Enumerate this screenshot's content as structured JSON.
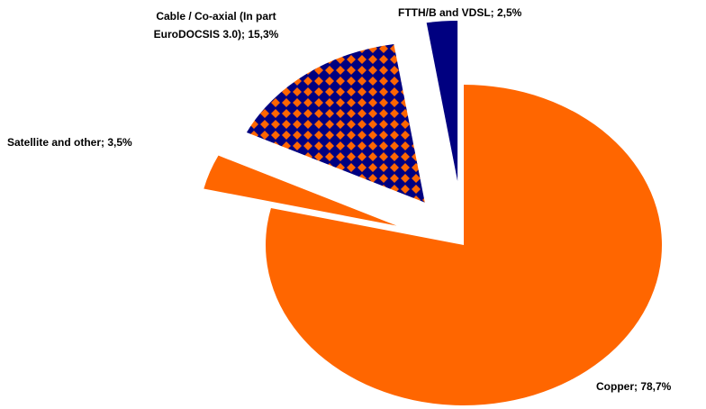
{
  "chart_data": {
    "type": "pie",
    "values": [
      78.7,
      3.5,
      15.3,
      2.5
    ],
    "value_labels": [
      "Copper; 78,7%",
      "Satellite and other; 3,5%",
      "Cable / Co-axial (In part\nEuroDOCSIS 3.0); 15,3%",
      "FTTH/B and VDSL; 2,5%"
    ],
    "colors": [
      "#ff6600",
      "#ff6600",
      "#000080",
      "#000080"
    ],
    "pattern": [
      false,
      false,
      true,
      false
    ]
  }
}
